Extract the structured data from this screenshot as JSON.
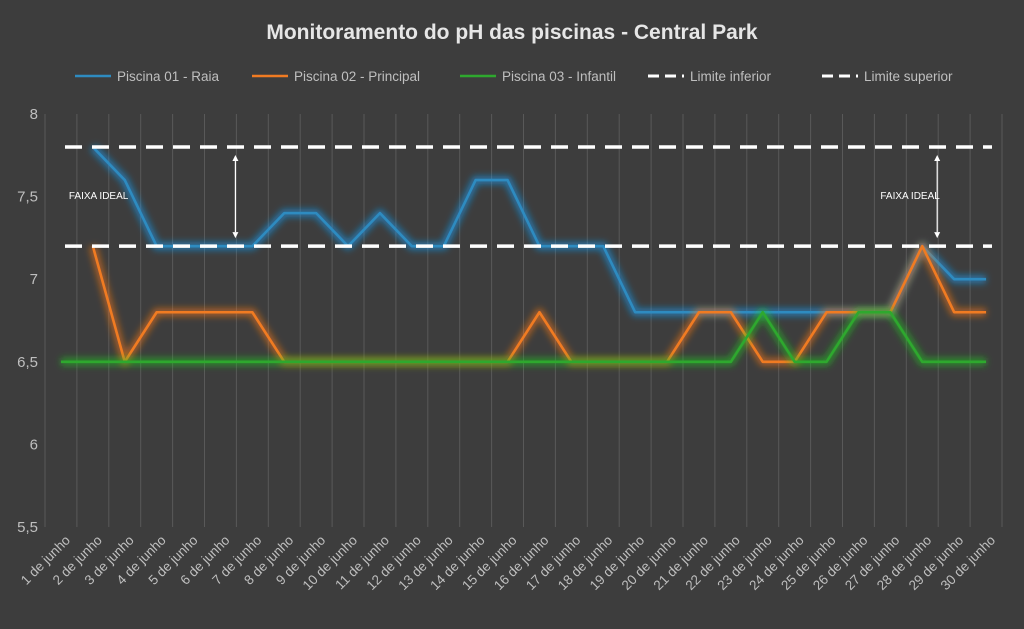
{
  "chart_data": {
    "type": "line",
    "title": "Monitoramento do pH das piscinas - Central Park",
    "categories": [
      "1 de junho",
      "2 de junho",
      "3 de junho",
      "4 de junho",
      "5 de junho",
      "6 de junho",
      "7 de junho",
      "8 de junho",
      "9 de junho",
      "10 de junho",
      "11 de junho",
      "12 de junho",
      "13 de junho",
      "14 de junho",
      "15 de junho",
      "16 de junho",
      "17 de junho",
      "18 de junho",
      "19 de junho",
      "20 de junho",
      "21 de junho",
      "22 de junho",
      "23 de junho",
      "24 de junho",
      "25 de junho",
      "26 de junho",
      "27 de junho",
      "28 de junho",
      "29 de junho",
      "30 de junho"
    ],
    "ylim": [
      5.5,
      8
    ],
    "y_ticks": [
      "5,5",
      "6",
      "6,5",
      "7",
      "7,5",
      "8"
    ],
    "grid": "vertical",
    "legend_position": "top",
    "series": [
      {
        "name": "Piscina 01 - Raia",
        "color": "#2e8bc0",
        "style": "solid",
        "glow": "#1aa3ff",
        "values": [
          null,
          7.8,
          7.6,
          7.2,
          7.2,
          7.2,
          7.2,
          7.4,
          7.4,
          7.2,
          7.4,
          7.2,
          7.2,
          7.6,
          7.6,
          7.2,
          7.2,
          7.2,
          6.8,
          6.8,
          6.8,
          6.8,
          6.8,
          6.8,
          6.8,
          6.8,
          6.8,
          7.2,
          7.0,
          7.0
        ]
      },
      {
        "name": "Piscina 02 - Principal",
        "color": "#f07b22",
        "style": "solid",
        "glow": "#ff7a1a",
        "values": [
          null,
          7.2,
          6.5,
          6.8,
          6.8,
          6.8,
          6.8,
          6.5,
          6.5,
          6.5,
          6.5,
          6.5,
          6.5,
          6.5,
          6.5,
          6.8,
          6.5,
          6.5,
          6.5,
          6.5,
          6.8,
          6.8,
          6.5,
          6.5,
          6.8,
          6.8,
          6.8,
          7.2,
          6.8,
          6.8
        ]
      },
      {
        "name": "Piscina 03 - Infantil",
        "color": "#2ea82e",
        "style": "solid",
        "glow": "#22cc22",
        "values": [
          6.5,
          6.5,
          6.5,
          6.5,
          6.5,
          6.5,
          6.5,
          6.5,
          6.5,
          6.5,
          6.5,
          6.5,
          6.5,
          6.5,
          6.5,
          6.5,
          6.5,
          6.5,
          6.5,
          6.5,
          6.5,
          6.5,
          6.8,
          6.5,
          6.5,
          6.8,
          6.8,
          6.5,
          6.5,
          6.5
        ]
      },
      {
        "name": "Limite inferior",
        "color": "#ffffff",
        "style": "dashed",
        "glow": "#38b6ff",
        "values": [
          7.2,
          7.2,
          7.2,
          7.2,
          7.2,
          7.2,
          7.2,
          7.2,
          7.2,
          7.2,
          7.2,
          7.2,
          7.2,
          7.2,
          7.2,
          7.2,
          7.2,
          7.2,
          7.2,
          7.2,
          7.2,
          7.2,
          7.2,
          7.2,
          7.2,
          7.2,
          7.2,
          7.2,
          7.2,
          7.2
        ]
      },
      {
        "name": "Limite superior",
        "color": "#ffffff",
        "style": "dashed",
        "glow": "#c438d6",
        "values": [
          7.8,
          7.8,
          7.8,
          7.8,
          7.8,
          7.8,
          7.8,
          7.8,
          7.8,
          7.8,
          7.8,
          7.8,
          7.8,
          7.8,
          7.8,
          7.8,
          7.8,
          7.8,
          7.8,
          7.8,
          7.8,
          7.8,
          7.8,
          7.8,
          7.8,
          7.8,
          7.8,
          7.8,
          7.8,
          7.8
        ]
      }
    ],
    "annotations": [
      {
        "text": "FAIXA IDEAL",
        "x": "2 de junho",
        "y_from": 7.2,
        "y_to": 7.8,
        "arrow_at": "6 de junho"
      },
      {
        "text": "FAIXA IDEAL",
        "x": "27 de junho",
        "y_from": 7.2,
        "y_to": 7.8,
        "arrow_at": "28 de junho"
      }
    ]
  }
}
